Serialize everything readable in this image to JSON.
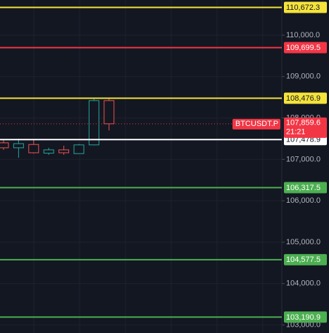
{
  "chart_data": {
    "type": "candlestick",
    "up_color": "#26a69a",
    "down_color": "#ef5350",
    "ylim": [
      102806,
      110850
    ],
    "yticks": [
      {
        "value": 103000,
        "label": "103,000.0"
      },
      {
        "value": 104000,
        "label": "104,000.0"
      },
      {
        "value": 105000,
        "label": "105,000.0"
      },
      {
        "value": 106000,
        "label": "106,000.0"
      },
      {
        "value": 107000,
        "label": "107,000.0"
      },
      {
        "value": 108000,
        "label": "108,000.0"
      },
      {
        "value": 109000,
        "label": "109,000.0"
      },
      {
        "value": 110000,
        "label": "110,000.0"
      }
    ],
    "open": [
      107400,
      107280,
      107360,
      107150,
      107230,
      107140,
      107350,
      108420
    ],
    "high": [
      107480,
      107500,
      107480,
      107280,
      107330,
      107370,
      108470,
      108470
    ],
    "low": [
      107230,
      107040,
      107140,
      107110,
      107110,
      107140,
      107340,
      107700
    ],
    "close": [
      107280,
      107380,
      107160,
      107230,
      107160,
      107350,
      108420,
      107859.6
    ],
    "levels": [
      {
        "value": 110672.3,
        "label": "110,672.3",
        "color": "#f5e33b"
      },
      {
        "value": 109699.5,
        "label": "109,699.5",
        "color": "#f23645"
      },
      {
        "value": 108476.9,
        "label": "108,476.9",
        "color": "#f5e33b"
      },
      {
        "value": 107478.9,
        "label": "107,478.9",
        "color": "#ffffff"
      },
      {
        "value": 106317.5,
        "label": "106,317.5",
        "color": "#4caf50"
      },
      {
        "value": 104577.5,
        "label": "104,577.5",
        "color": "#4caf50"
      },
      {
        "value": 103190.9,
        "label": "103,190.9",
        "color": "#4caf50"
      }
    ],
    "current_price": {
      "symbol": "BTCUSDT.P",
      "value": 107859.6,
      "label": "107,859.6",
      "countdown": "21:21",
      "color": "#f23645"
    }
  }
}
